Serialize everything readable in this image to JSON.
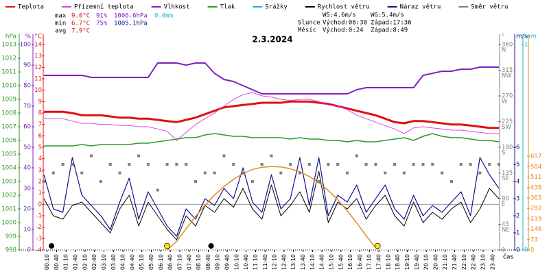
{
  "chart_data": {
    "type": "line",
    "title": "2.3.2024",
    "xlabel": "čas",
    "legend": [
      {
        "name": "Teplota",
        "color": "#e01010"
      },
      {
        "name": "Přízemní teplota",
        "color": "#e040e0"
      },
      {
        "name": "Vlhkost",
        "color": "#8020c0"
      },
      {
        "name": "Tlak",
        "color": "#2a9a2a"
      },
      {
        "name": "Srážky",
        "color": "#20b0d0"
      },
      {
        "name": "Rychlost větru",
        "color": "#000000"
      },
      {
        "name": "Náraz větru",
        "color": "#101090"
      },
      {
        "name": "Směr větru",
        "color": "#808080"
      }
    ],
    "stats": [
      {
        "label": "max",
        "items": [
          {
            "text": "9.0°C",
            "color": "#e01010"
          },
          {
            "text": "91%",
            "color": "#8020c0"
          },
          {
            "text": "1006.6hPa",
            "color": "#8020c0"
          },
          {
            "text": "0.0mm",
            "color": "#20b0d0"
          }
        ]
      },
      {
        "label": "min",
        "items": [
          {
            "text": "6.7°C",
            "color": "#e01010"
          },
          {
            "text": "75%",
            "color": "#8020c0"
          },
          {
            "text": "1005.1hPa",
            "color": "#101090"
          }
        ]
      },
      {
        "label": "avg",
        "items": [
          {
            "text": "7.9°C",
            "color": "#e01010"
          }
        ]
      }
    ],
    "info": [
      [
        "",
        "WS:4.6m/s",
        "WG:5.4m/s"
      ],
      [
        "Slunce",
        "Východ:06:30",
        "Západ:17:36"
      ],
      [
        "Měsíc",
        "Východ:0:24",
        "Západ:8:49"
      ]
    ],
    "xlim": [
      0,
      1440
    ],
    "xticks": [
      {
        "value": 10,
        "label": "00:10"
      },
      {
        "value": 40,
        "label": "00:40"
      },
      {
        "value": 70,
        "label": "01:10"
      },
      {
        "value": 100,
        "label": "01:40"
      },
      {
        "value": 130,
        "label": "02:10"
      },
      {
        "value": 160,
        "label": "02:40"
      },
      {
        "value": 190,
        "label": "03:10"
      },
      {
        "value": 220,
        "label": "03:40"
      },
      {
        "value": 250,
        "label": "04:10"
      },
      {
        "value": 280,
        "label": "04:40"
      },
      {
        "value": 310,
        "label": "05:10"
      },
      {
        "value": 340,
        "label": "05:40"
      },
      {
        "value": 370,
        "label": "06:10"
      },
      {
        "value": 400,
        "label": "06:40"
      },
      {
        "value": 430,
        "label": "07:10"
      },
      {
        "value": 460,
        "label": "07:40"
      },
      {
        "value": 490,
        "label": "08:10"
      },
      {
        "value": 520,
        "label": "08:40"
      },
      {
        "value": 550,
        "label": "09:10"
      },
      {
        "value": 580,
        "label": "09:40"
      },
      {
        "value": 610,
        "label": "10:10"
      },
      {
        "value": 640,
        "label": "10:40"
      },
      {
        "value": 670,
        "label": "11:10"
      },
      {
        "value": 700,
        "label": "11:40"
      },
      {
        "value": 730,
        "label": "12:10"
      },
      {
        "value": 760,
        "label": "12:40"
      },
      {
        "value": 790,
        "label": "13:10"
      },
      {
        "value": 820,
        "label": "13:40"
      },
      {
        "value": 850,
        "label": "14:10"
      },
      {
        "value": 880,
        "label": "14:40"
      },
      {
        "value": 910,
        "label": "15:10"
      },
      {
        "value": 940,
        "label": "15:40"
      },
      {
        "value": 970,
        "label": "16:10"
      },
      {
        "value": 1000,
        "label": "16:40"
      },
      {
        "value": 1030,
        "label": "17:10"
      },
      {
        "value": 1060,
        "label": "17:40"
      },
      {
        "value": 1090,
        "label": "18:10"
      },
      {
        "value": 1120,
        "label": "18:40"
      },
      {
        "value": 1150,
        "label": "19:10"
      },
      {
        "value": 1180,
        "label": "19:40"
      },
      {
        "value": 1210,
        "label": "20:10"
      },
      {
        "value": 1240,
        "label": "20:40"
      },
      {
        "value": 1270,
        "label": "21:10"
      },
      {
        "value": 1300,
        "label": "21:40"
      },
      {
        "value": 1330,
        "label": "22:10"
      },
      {
        "value": 1360,
        "label": "22:40"
      },
      {
        "value": 1390,
        "label": "23:10"
      },
      {
        "value": 1420,
        "label": "23:40"
      }
    ],
    "axes": {
      "hpa": {
        "unit": "hPa",
        "color": "#2a9a2a",
        "side": "left",
        "lim": [
          998,
          1013
        ],
        "ticks": [
          998,
          999,
          1000,
          1001,
          1002,
          1003,
          1004,
          1005,
          1006,
          1007,
          1008,
          1009,
          1010,
          1011,
          1012,
          1013
        ]
      },
      "pct": {
        "unit": "%",
        "color": "#8020c0",
        "side": "left",
        "lim": [
          0,
          100
        ],
        "ticks": [
          0,
          10,
          20,
          30,
          40,
          50,
          60,
          70,
          80,
          90,
          100
        ]
      },
      "temp": {
        "unit": "°C",
        "color": "#e01010",
        "side": "left",
        "lim": [
          -4,
          14
        ],
        "ticks": [
          -4,
          -3,
          -2,
          -1,
          0,
          1,
          2,
          3,
          4,
          5,
          6,
          7,
          8,
          9,
          10,
          11,
          12,
          13,
          14
        ]
      },
      "dir": {
        "unit": "°",
        "color": "#808080",
        "side": "right",
        "lim": [
          0,
          360
        ],
        "ticks": [
          0,
          45,
          90,
          135,
          180,
          225,
          270,
          315,
          360
        ],
        "compass": [
          null,
          "NE",
          "E",
          "SE",
          "S",
          "SW",
          "W",
          "NW",
          "N"
        ]
      },
      "ms": {
        "unit": "m/s",
        "color": "#101090",
        "side": "right",
        "lim": [
          0,
          12
        ],
        "ticks": [
          0,
          1,
          2,
          3,
          4,
          5,
          6
        ]
      },
      "mm": {
        "unit": "mm",
        "color": "#20b0d0",
        "side": "right",
        "lim": [
          0,
          1
        ],
        "ticks": [
          0,
          1
        ]
      },
      "sun": {
        "color": "#e08a1a",
        "side": "right",
        "lim": [
          0,
          1440
        ],
        "ticks": [
          0,
          73,
          146,
          219,
          292,
          365,
          438,
          511,
          584,
          657
        ]
      }
    },
    "x": [
      0,
      30,
      60,
      90,
      120,
      150,
      180,
      210,
      240,
      270,
      300,
      330,
      360,
      390,
      420,
      450,
      480,
      510,
      540,
      570,
      600,
      630,
      660,
      690,
      720,
      750,
      780,
      810,
      840,
      870,
      900,
      930,
      960,
      990,
      1020,
      1050,
      1080,
      1110,
      1140,
      1170,
      1200,
      1230,
      1260,
      1290,
      1320,
      1350,
      1380,
      1410,
      1440
    ],
    "series": [
      {
        "color": "#e01010",
        "axis": "temp",
        "width": 3,
        "values": [
          8.1,
          8.1,
          8.1,
          8.0,
          7.8,
          7.8,
          7.8,
          7.7,
          7.6,
          7.6,
          7.5,
          7.5,
          7.4,
          7.3,
          7.2,
          7.4,
          7.6,
          7.9,
          8.2,
          8.5,
          8.6,
          8.7,
          8.8,
          8.9,
          8.9,
          8.9,
          9.0,
          9.0,
          9.0,
          8.9,
          8.8,
          8.6,
          8.4,
          8.2,
          8.0,
          7.8,
          7.5,
          7.2,
          7.1,
          7.3,
          7.3,
          7.2,
          7.1,
          7.0,
          7.0,
          6.9,
          6.8,
          6.7,
          6.7
        ]
      },
      {
        "color": "#e040e0",
        "axis": "temp",
        "width": 1,
        "values": [
          7.5,
          7.5,
          7.5,
          7.3,
          7.1,
          7.1,
          7.0,
          7.0,
          6.9,
          6.9,
          6.8,
          6.8,
          6.6,
          6.4,
          5.6,
          6.3,
          7.0,
          7.5,
          8.0,
          8.6,
          9.2,
          9.6,
          9.8,
          9.5,
          9.4,
          9.2,
          9.1,
          9.2,
          9.2,
          9.0,
          8.7,
          8.6,
          8.3,
          7.8,
          7.5,
          7.2,
          6.9,
          6.6,
          6.2,
          6.7,
          6.8,
          6.7,
          6.6,
          6.5,
          6.5,
          6.4,
          6.3,
          6.2,
          6.2
        ]
      },
      {
        "color": "#8020c0",
        "axis": "pct",
        "width": 2,
        "values": [
          85,
          85,
          85,
          85,
          85,
          84,
          84,
          84,
          84,
          84,
          84,
          84,
          91,
          91,
          91,
          90,
          91,
          91,
          86,
          83,
          82,
          80,
          78,
          76,
          76,
          76,
          76,
          76,
          76,
          76,
          76,
          76,
          76,
          78,
          79,
          79,
          79,
          79,
          79,
          79,
          85,
          86,
          87,
          87,
          88,
          88,
          89,
          89,
          89
        ]
      },
      {
        "color": "#2a9a2a",
        "axis": "hpa",
        "width": 1.5,
        "values": [
          1005.6,
          1005.6,
          1005.6,
          1005.6,
          1005.7,
          1005.6,
          1005.7,
          1005.7,
          1005.7,
          1005.7,
          1005.8,
          1005.8,
          1005.9,
          1006.0,
          1006.1,
          1006.2,
          1006.2,
          1006.4,
          1006.5,
          1006.4,
          1006.3,
          1006.3,
          1006.2,
          1006.2,
          1006.2,
          1006.2,
          1006.1,
          1006.2,
          1006.1,
          1006.1,
          1006.0,
          1006.0,
          1005.9,
          1006.0,
          1005.9,
          1005.9,
          1006.0,
          1006.1,
          1006.2,
          1006.0,
          1006.3,
          1006.5,
          1006.3,
          1006.2,
          1006.2,
          1006.1,
          1006.0,
          1006.0,
          1005.9
        ]
      },
      {
        "color": "#101090",
        "axis": "ms",
        "width": 1.2,
        "values": [
          4.4,
          2.4,
          2.2,
          5.4,
          3.2,
          2.6,
          2.0,
          1.2,
          2.8,
          4.2,
          1.8,
          3.4,
          2.4,
          1.4,
          0.8,
          2.4,
          1.8,
          3.0,
          2.6,
          3.6,
          3.0,
          4.8,
          2.8,
          2.2,
          4.4,
          2.4,
          3.0,
          5.4,
          2.6,
          5.4,
          2.0,
          3.2,
          2.8,
          3.8,
          2.2,
          3.0,
          3.8,
          2.4,
          1.8,
          3.2,
          2.0,
          2.6,
          2.2,
          2.8,
          3.4,
          2.0,
          5.4,
          4.4,
          3.6
        ]
      },
      {
        "color": "#000000",
        "axis": "ms",
        "width": 1,
        "values": [
          3.0,
          2.0,
          1.8,
          2.6,
          2.8,
          2.2,
          1.6,
          1.0,
          2.4,
          3.2,
          1.4,
          2.8,
          2.0,
          1.2,
          0.6,
          2.0,
          1.4,
          2.6,
          2.2,
          3.0,
          2.5,
          3.6,
          2.4,
          1.8,
          3.8,
          2.0,
          2.6,
          3.4,
          2.2,
          4.6,
          1.6,
          2.8,
          2.4,
          3.0,
          1.8,
          2.6,
          3.2,
          2.0,
          1.4,
          2.8,
          1.6,
          2.2,
          1.8,
          2.4,
          2.8,
          1.6,
          2.4,
          3.6,
          3.0
        ]
      },
      {
        "color": "#e08a1a",
        "axis": "sun",
        "width": 1.5,
        "values": [
          null,
          null,
          null,
          null,
          null,
          null,
          null,
          null,
          null,
          null,
          null,
          null,
          null,
          0,
          60,
          150,
          235,
          315,
          385,
          445,
          495,
          535,
          565,
          580,
          585,
          582,
          570,
          548,
          515,
          472,
          418,
          352,
          275,
          190,
          100,
          15,
          null,
          null,
          null,
          null,
          null,
          null,
          null,
          null,
          null,
          null,
          null,
          null,
          null
        ]
      },
      {
        "color": "#808080",
        "axis": "dir",
        "marker": "square",
        "values": [
          120,
          135,
          150,
          150,
          135,
          165,
          120,
          150,
          135,
          150,
          165,
          150,
          105,
          150,
          150,
          150,
          120,
          135,
          135,
          165,
          150,
          135,
          120,
          150,
          165,
          135,
          150,
          135,
          150,
          120,
          150,
          150,
          135,
          165,
          150,
          150,
          135,
          150,
          135,
          150,
          150,
          150,
          135,
          120,
          150,
          150,
          135,
          150,
          150
        ]
      }
    ],
    "sun_x": [
      390,
      1056
    ],
    "moon_x": [
      24,
      529
    ]
  }
}
